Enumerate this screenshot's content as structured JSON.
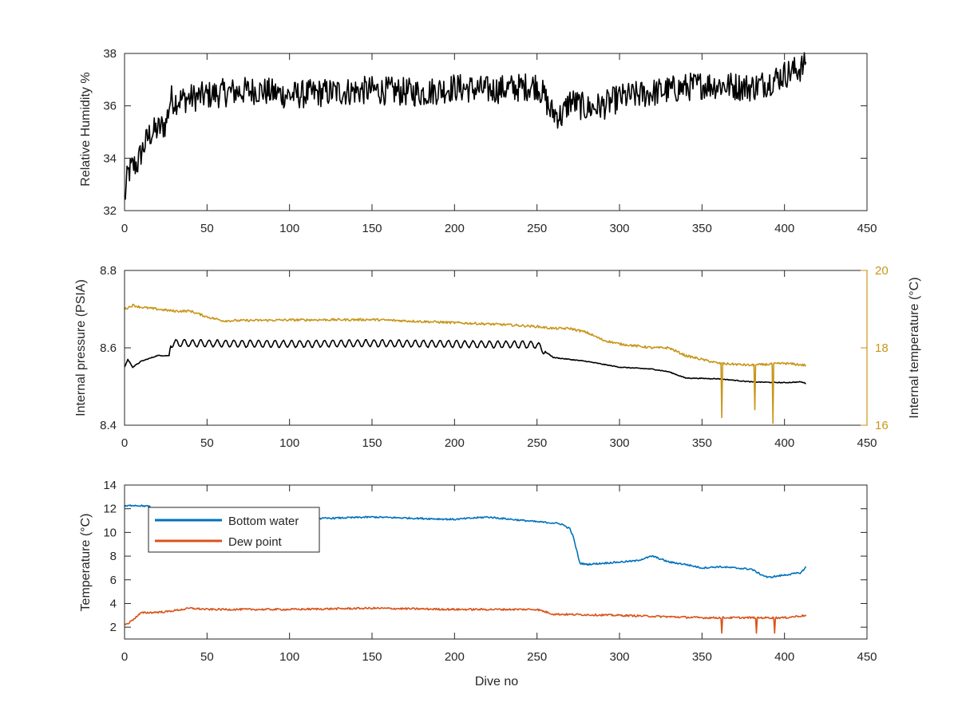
{
  "figure": {
    "background": "#ffffff",
    "axis_color": "#262626"
  },
  "chart_data": [
    {
      "type": "line",
      "xlabel": "",
      "ylabel": "Relative Humidity %",
      "xlim": [
        0,
        450
      ],
      "ylim": [
        32,
        38
      ],
      "xticks": [
        0,
        50,
        100,
        150,
        200,
        250,
        300,
        350,
        400,
        450
      ],
      "yticks": [
        32,
        34,
        36,
        38
      ],
      "grid": false,
      "series": [
        {
          "color": "#000000",
          "noise": 0.55,
          "x": [
            0,
            2,
            5,
            8,
            10,
            15,
            20,
            25,
            28,
            30,
            40,
            50,
            60,
            80,
            100,
            120,
            150,
            180,
            200,
            220,
            240,
            250,
            255,
            258,
            265,
            270,
            280,
            290,
            300,
            320,
            340,
            350,
            360,
            380,
            390,
            400,
            408,
            412,
            413
          ],
          "y": [
            32.4,
            33.4,
            33.7,
            33.8,
            34.2,
            34.9,
            35.1,
            35.3,
            36.3,
            36.2,
            36.3,
            36.4,
            36.5,
            36.6,
            36.4,
            36.5,
            36.6,
            36.5,
            36.7,
            36.6,
            36.7,
            36.8,
            36.3,
            35.8,
            35.6,
            36.2,
            35.9,
            36.0,
            36.3,
            36.5,
            36.7,
            36.8,
            36.8,
            36.7,
            36.9,
            37.2,
            37.4,
            37.5,
            37.9
          ]
        }
      ]
    },
    {
      "type": "line",
      "xlabel": "",
      "ylabel": "Internal pressure (PSIA)",
      "ylabel_right": "Internal temperature (°C)",
      "xlim": [
        0,
        450
      ],
      "ylim": [
        8.4,
        8.8
      ],
      "ylim_right": [
        16,
        20
      ],
      "xticks": [
        0,
        50,
        100,
        150,
        200,
        250,
        300,
        350,
        400,
        450
      ],
      "yticks": [
        8.4,
        8.6,
        8.8
      ],
      "yticks_right": [
        16,
        18,
        20
      ],
      "grid": false,
      "series": [
        {
          "axis": "left",
          "color": "#000000",
          "osc_start": 28,
          "osc_end": 255,
          "osc_amp": 0.009,
          "noise": 0.001,
          "x": [
            0,
            2,
            5,
            10,
            20,
            27,
            28,
            30,
            100,
            150,
            200,
            250,
            255,
            260,
            280,
            300,
            320,
            330,
            340,
            360,
            380,
            400,
            410,
            413
          ],
          "y": [
            8.55,
            8.57,
            8.55,
            8.565,
            8.58,
            8.58,
            8.61,
            8.612,
            8.61,
            8.612,
            8.61,
            8.608,
            8.59,
            8.575,
            8.565,
            8.55,
            8.545,
            8.538,
            8.522,
            8.52,
            8.512,
            8.51,
            8.512,
            8.508
          ]
        },
        {
          "axis": "right",
          "color": "#c8961b",
          "noise": 0.03,
          "x": [
            0,
            5,
            10,
            20,
            30,
            40,
            50,
            60,
            100,
            150,
            200,
            230,
            250,
            260,
            270,
            280,
            290,
            300,
            310,
            320,
            330,
            340,
            350,
            360,
            380,
            400,
            413
          ],
          "y": [
            19.0,
            19.1,
            19.05,
            19.0,
            18.95,
            18.95,
            18.8,
            18.7,
            18.72,
            18.73,
            18.65,
            18.6,
            18.55,
            18.5,
            18.5,
            18.4,
            18.2,
            18.1,
            18.05,
            18.0,
            18.0,
            17.8,
            17.7,
            17.6,
            17.55,
            17.6,
            17.55
          ],
          "spikes": [
            {
              "x": 362,
              "y": 16.2
            },
            {
              "x": 382,
              "y": 16.4
            },
            {
              "x": 393,
              "y": 16.05
            }
          ]
        }
      ]
    },
    {
      "type": "line",
      "xlabel": "Dive no",
      "ylabel": "Temperature (°C)",
      "xlim": [
        0,
        450
      ],
      "ylim": [
        1,
        14
      ],
      "xticks": [
        0,
        50,
        100,
        150,
        200,
        250,
        300,
        350,
        400,
        450
      ],
      "yticks": [
        2,
        4,
        6,
        8,
        10,
        12,
        14
      ],
      "grid": false,
      "legend_position": "top-left",
      "series": [
        {
          "name": "Bottom water",
          "color": "#0072bd",
          "noise": 0.07,
          "x": [
            0,
            5,
            15,
            20,
            50,
            100,
            150,
            200,
            220,
            250,
            260,
            265,
            270,
            272,
            274,
            276,
            280,
            300,
            310,
            320,
            330,
            340,
            350,
            360,
            380,
            385,
            390,
            400,
            410,
            413
          ],
          "y": [
            12.2,
            12.3,
            12.2,
            11.2,
            11.2,
            11.1,
            11.3,
            11.1,
            11.3,
            10.9,
            10.8,
            10.7,
            10.3,
            9.6,
            8.5,
            7.4,
            7.3,
            7.5,
            7.6,
            8.0,
            7.5,
            7.3,
            7.0,
            7.1,
            6.9,
            6.5,
            6.2,
            6.4,
            6.6,
            7.1
          ]
        },
        {
          "name": "Dew point",
          "color": "#d95319",
          "noise": 0.08,
          "x": [
            0,
            3,
            10,
            25,
            40,
            50,
            100,
            150,
            200,
            250,
            260,
            300,
            350,
            380,
            400,
            413
          ],
          "y": [
            2.2,
            2.4,
            3.2,
            3.3,
            3.6,
            3.5,
            3.5,
            3.6,
            3.5,
            3.5,
            3.1,
            3.0,
            2.8,
            2.8,
            2.8,
            3.0
          ],
          "spikes": [
            {
              "x": 362,
              "y": 1.5
            },
            {
              "x": 383,
              "y": 1.5
            },
            {
              "x": 394,
              "y": 1.5
            }
          ]
        }
      ]
    }
  ]
}
